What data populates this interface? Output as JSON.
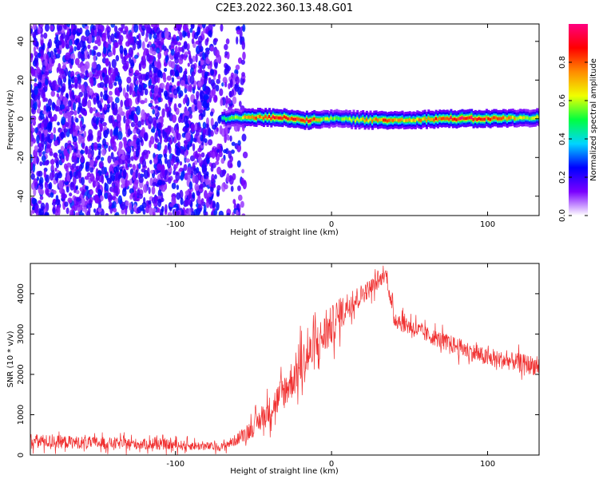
{
  "title": "C2E3.2022.360.13.48.G01",
  "chart_data": [
    {
      "type": "heatmap",
      "xlabel": "Height of straight line (km)",
      "ylabel": "Frequency (Hz)",
      "xlim": [
        -193,
        133
      ],
      "ylim": [
        -50,
        49
      ],
      "xticks": [
        -100,
        0,
        100
      ],
      "yticks": [
        -40,
        -20,
        0,
        20,
        40
      ],
      "colorbar": {
        "label": "Normalized spectral amplitude",
        "range": [
          0,
          1
        ],
        "ticks": [
          0,
          0.2,
          0.4,
          0.6,
          0.8
        ],
        "tick_labels": [
          "0.0",
          "0.2",
          "0.4",
          "0.6",
          "0.8"
        ],
        "colormap": [
          "#ffffff",
          "#7a00ff",
          "#0000ff",
          "#00d5ff",
          "#00ff40",
          "#f0ff00",
          "#ff8c00",
          "#ff0000",
          "#ff0080"
        ]
      },
      "noise_region": {
        "x_range": [
          -193,
          -55
        ],
        "amplitude": "0.1-0.3"
      },
      "signal_trace": [
        {
          "x": -70,
          "freq": 0.0,
          "amp": 0.45
        },
        {
          "x": -60,
          "freq": 0.5,
          "amp": 0.6
        },
        {
          "x": -50,
          "freq": 0.8,
          "amp": 0.75
        },
        {
          "x": -35,
          "freq": 0.5,
          "amp": 0.9
        },
        {
          "x": -25,
          "freq": 0.3,
          "amp": 0.85
        },
        {
          "x": -15,
          "freq": -1.0,
          "amp": 0.92
        },
        {
          "x": -5,
          "freq": 0.2,
          "amp": 0.6
        },
        {
          "x": 10,
          "freq": -0.3,
          "amp": 0.55
        },
        {
          "x": 30,
          "freq": -0.8,
          "amp": 0.82
        },
        {
          "x": 50,
          "freq": -0.5,
          "amp": 0.7
        },
        {
          "x": 70,
          "freq": 0.0,
          "amp": 0.85
        },
        {
          "x": 90,
          "freq": 0.0,
          "amp": 0.95
        },
        {
          "x": 110,
          "freq": 0.2,
          "amp": 0.75
        },
        {
          "x": 130,
          "freq": 0.5,
          "amp": 0.6
        }
      ]
    },
    {
      "type": "line",
      "xlabel": "Height of straight line (km)",
      "ylabel": "SNR (10 * v/v)",
      "xlim": [
        -193,
        133
      ],
      "ylim": [
        0,
        4750
      ],
      "xticks": [
        -100,
        0,
        100
      ],
      "yticks": [
        0,
        1000,
        2000,
        3000,
        4000
      ],
      "color": "#f03030",
      "series": [
        {
          "x": [
            -193,
            -150,
            -100,
            -70,
            -60,
            -50,
            -40,
            -30,
            -20,
            -10,
            0,
            10,
            20,
            30,
            35,
            38,
            40,
            45,
            60,
            80,
            100,
            120,
            133
          ],
          "y": [
            350,
            300,
            250,
            200,
            400,
            700,
            1100,
            1600,
            2200,
            2700,
            3200,
            3700,
            4000,
            4300,
            4500,
            3800,
            3400,
            3300,
            3000,
            2700,
            2400,
            2300,
            2200
          ],
          "noise": [
            350,
            300,
            250,
            200,
            300,
            500,
            700,
            900,
            1100,
            1100,
            1000,
            700,
            500,
            400,
            300,
            400,
            500,
            500,
            400,
            450,
            450,
            450,
            500
          ]
        }
      ]
    }
  ]
}
